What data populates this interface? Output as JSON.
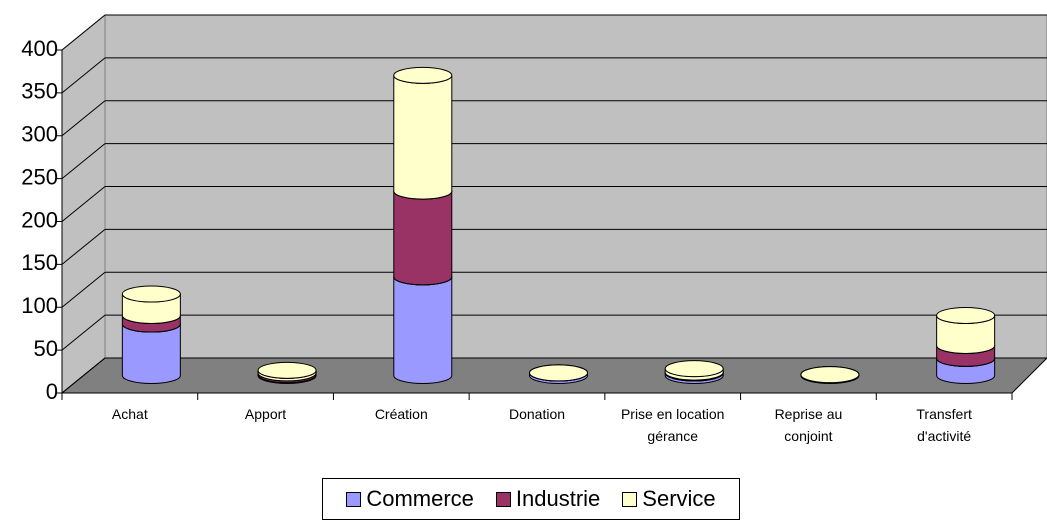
{
  "chart_data": {
    "type": "bar3d_stacked",
    "categories": [
      "Achat",
      "Apport",
      "Création",
      "Donation",
      "Prise en location gérance",
      "Reprise au conjoint",
      "Transfert d'activité"
    ],
    "series": [
      {
        "name": "Commerce",
        "color": "#9999ff",
        "values": [
          60,
          1,
          115,
          3,
          3,
          1,
          20
        ]
      },
      {
        "name": "Industrie",
        "color": "#993366",
        "values": [
          10,
          2,
          100,
          0,
          1,
          0,
          15
        ]
      },
      {
        "name": "Service",
        "color": "#ffffcc",
        "values": [
          25,
          3,
          135,
          0,
          4,
          0,
          35
        ]
      }
    ],
    "ylim": [
      0,
      400
    ],
    "yticks": [
      0,
      50,
      100,
      150,
      200,
      250,
      300,
      350,
      400
    ],
    "grid": true,
    "legend": "bottom"
  }
}
